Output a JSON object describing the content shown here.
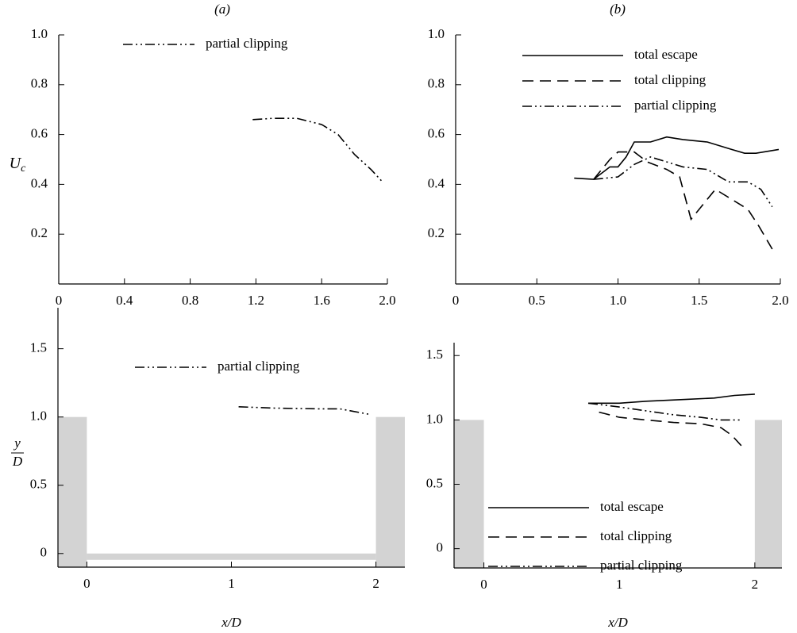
{
  "chart_data": [
    {
      "type": "line",
      "title": "(a)",
      "ylabel": "U",
      "ylabel_sub": "c",
      "xlim": [
        0,
        2
      ],
      "ylim": [
        0,
        1
      ],
      "xticks": [
        0,
        0.4,
        0.8,
        1.2,
        1.6,
        {
          "value": 2,
          "label": "2.0"
        }
      ],
      "yticks": [
        0.2,
        0.4,
        0.6,
        0.8,
        {
          "value": 1,
          "label": "1.0"
        }
      ],
      "legend": "upper center",
      "series": [
        {
          "name": "partial clipping",
          "color": "#000000",
          "style": "dash-dot-dot",
          "x": [
            1.18,
            1.3,
            1.45,
            1.6,
            1.7,
            1.8,
            1.9,
            1.97
          ],
          "values": [
            0.66,
            0.665,
            0.665,
            0.64,
            0.6,
            0.52,
            0.46,
            0.41
          ]
        }
      ]
    },
    {
      "type": "line",
      "title": "(b)",
      "xlim": [
        0,
        2
      ],
      "ylim": [
        0,
        1
      ],
      "xticks": [
        0,
        0.5,
        {
          "value": 1,
          "label": "1.0"
        },
        1.5,
        {
          "value": 2,
          "label": "2.0"
        }
      ],
      "yticks": [
        0.2,
        0.4,
        0.6,
        0.8,
        {
          "value": 1,
          "label": "1.0"
        }
      ],
      "legend": "upper right",
      "series": [
        {
          "name": "total escape",
          "color": "#000000",
          "style": "solid",
          "x": [
            0.73,
            0.85,
            0.95,
            1.0,
            1.05,
            1.1,
            1.2,
            1.3,
            1.4,
            1.55,
            1.7,
            1.78,
            1.85,
            1.99
          ],
          "values": [
            0.425,
            0.42,
            0.47,
            0.47,
            0.51,
            0.57,
            0.57,
            0.59,
            0.58,
            0.57,
            0.54,
            0.525,
            0.525,
            0.54
          ]
        },
        {
          "name": "total clipping",
          "color": "#000000",
          "style": "dashed",
          "x": [
            0.85,
            0.95,
            1.0,
            1.1,
            1.18,
            1.3,
            1.38,
            1.45,
            1.6,
            1.7,
            1.8,
            1.87,
            1.95
          ],
          "values": [
            0.42,
            0.5,
            0.53,
            0.53,
            0.49,
            0.46,
            0.43,
            0.26,
            0.38,
            0.34,
            0.3,
            0.23,
            0.14
          ]
        },
        {
          "name": "partial clipping",
          "color": "#000000",
          "style": "dash-dot-dot",
          "x": [
            0.85,
            1.0,
            1.1,
            1.2,
            1.3,
            1.4,
            1.55,
            1.68,
            1.8,
            1.88,
            1.95
          ],
          "values": [
            0.42,
            0.43,
            0.48,
            0.51,
            0.49,
            0.47,
            0.46,
            0.41,
            0.41,
            0.38,
            0.31
          ]
        }
      ]
    },
    {
      "type": "line",
      "xlabel": "x/D",
      "ylabel_num": "y",
      "ylabel_den": "D",
      "xlim": [
        -0.2,
        2.2
      ],
      "ylim": [
        -0.1,
        1.8
      ],
      "xticks": [
        0,
        1,
        2
      ],
      "yticks": [
        0,
        0.5,
        {
          "value": 1,
          "label": "1.0"
        },
        1.5
      ],
      "legend": "upper center",
      "series": [
        {
          "name": "partial clipping",
          "color": "#000000",
          "style": "dash-dot-dot",
          "x": [
            1.05,
            1.3,
            1.6,
            1.75,
            1.85,
            1.95
          ],
          "values": [
            1.075,
            1.065,
            1.06,
            1.06,
            1.04,
            1.02
          ]
        }
      ]
    },
    {
      "type": "line",
      "xlabel": "x/D",
      "xlim": [
        -0.22,
        2.2
      ],
      "ylim": [
        -0.15,
        1.6
      ],
      "xticks": [
        0,
        1,
        2
      ],
      "yticks": [
        0,
        0.5,
        {
          "value": 1,
          "label": "1.0"
        },
        1.5
      ],
      "legend": "lower left",
      "series": [
        {
          "name": "total escape",
          "color": "#000000",
          "style": "solid",
          "x": [
            0.77,
            1.0,
            1.2,
            1.5,
            1.7,
            1.85,
            2.0
          ],
          "values": [
            1.13,
            1.13,
            1.145,
            1.16,
            1.17,
            1.19,
            1.2
          ]
        },
        {
          "name": "total clipping",
          "color": "#000000",
          "style": "dashed",
          "x": [
            0.85,
            1.0,
            1.2,
            1.4,
            1.6,
            1.75,
            1.83,
            1.9
          ],
          "values": [
            1.06,
            1.02,
            1.0,
            0.98,
            0.97,
            0.94,
            0.88,
            0.8
          ]
        },
        {
          "name": "partial clipping",
          "color": "#000000",
          "style": "dash-dot-dot",
          "x": [
            0.77,
            1.0,
            1.2,
            1.4,
            1.6,
            1.75,
            1.9
          ],
          "values": [
            1.13,
            1.1,
            1.07,
            1.04,
            1.02,
            1.0,
            1.0
          ]
        }
      ]
    }
  ]
}
